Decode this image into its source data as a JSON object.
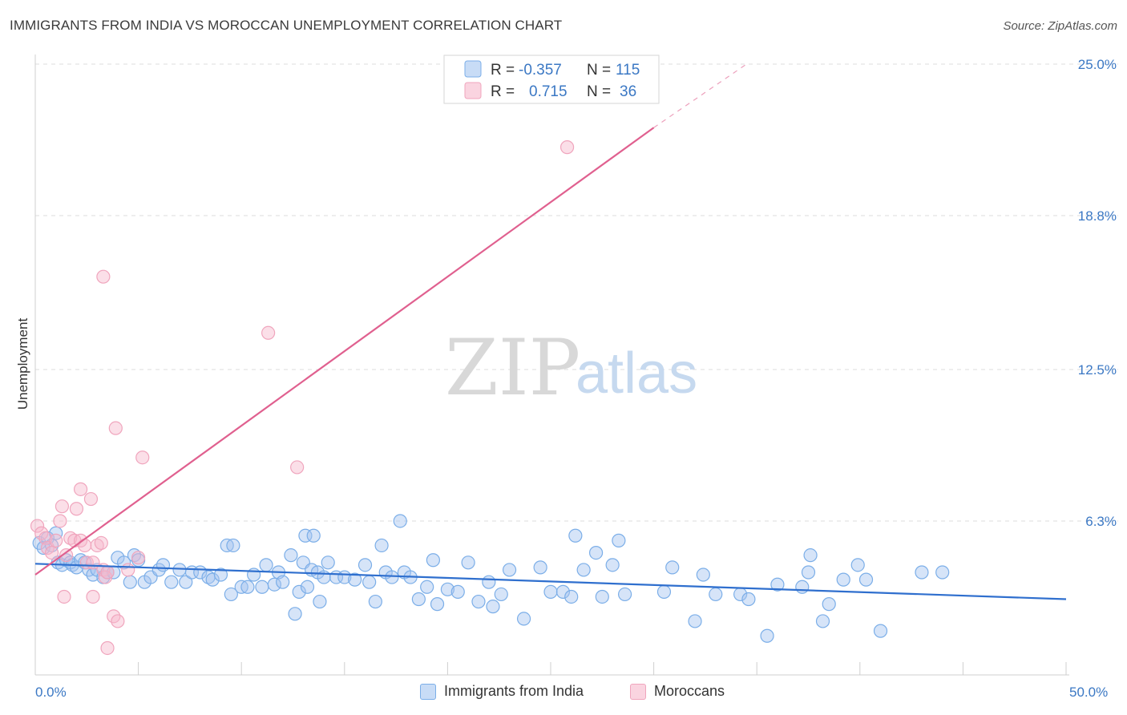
{
  "header": {
    "title": "IMMIGRANTS FROM INDIA VS MOROCCAN UNEMPLOYMENT CORRELATION CHART",
    "source": "Source: ZipAtlas.com"
  },
  "watermark": {
    "zip": "ZIP",
    "atlas": "atlas"
  },
  "chart_data": {
    "type": "scatter",
    "title": "IMMIGRANTS FROM INDIA VS MOROCCAN UNEMPLOYMENT CORRELATION CHART",
    "xlabel": "",
    "ylabel": "Unemployment",
    "xlim": [
      0,
      50
    ],
    "ylim": [
      0,
      25
    ],
    "x_tick_labels": [
      "0.0%",
      "50.0%"
    ],
    "y_ticks": [
      {
        "value": 6.3,
        "label": "6.3%"
      },
      {
        "value": 12.5,
        "label": "12.5%"
      },
      {
        "value": 18.8,
        "label": "18.8%"
      },
      {
        "value": 25.0,
        "label": "25.0%"
      }
    ],
    "legend_stats": [
      {
        "r_label": "R =",
        "r_value": "-0.357",
        "n_label": "N =",
        "n_value": "115"
      },
      {
        "r_label": "R =",
        "r_value": "0.715",
        "n_label": "N =",
        "n_value": "36"
      }
    ],
    "series": [
      {
        "name": "Immigrants from India",
        "color": "#7baee8",
        "fill": "rgba(164,196,240,0.45)",
        "line_color": "#2f6fce",
        "trend": {
          "x0": 0.0,
          "y0": 4.55,
          "x1": 50.0,
          "y1": 3.1
        },
        "points": [
          [
            0.2,
            5.4
          ],
          [
            0.4,
            5.2
          ],
          [
            0.6,
            5.6
          ],
          [
            0.8,
            5.3
          ],
          [
            1.0,
            5.8
          ],
          [
            1.1,
            4.6
          ],
          [
            1.3,
            4.5
          ],
          [
            1.5,
            4.7
          ],
          [
            1.7,
            4.6
          ],
          [
            1.8,
            4.5
          ],
          [
            2.0,
            4.4
          ],
          [
            2.2,
            4.7
          ],
          [
            2.4,
            4.6
          ],
          [
            2.6,
            4.3
          ],
          [
            2.8,
            4.1
          ],
          [
            3.0,
            4.3
          ],
          [
            3.3,
            4.0
          ],
          [
            3.5,
            4.2
          ],
          [
            3.8,
            4.2
          ],
          [
            4.0,
            4.8
          ],
          [
            4.3,
            4.6
          ],
          [
            4.6,
            3.8
          ],
          [
            4.8,
            4.9
          ],
          [
            5.0,
            4.7
          ],
          [
            5.3,
            3.8
          ],
          [
            5.6,
            4.0
          ],
          [
            6.0,
            4.3
          ],
          [
            6.2,
            4.5
          ],
          [
            6.6,
            3.8
          ],
          [
            7.0,
            4.3
          ],
          [
            7.3,
            3.8
          ],
          [
            7.6,
            4.2
          ],
          [
            8.0,
            4.2
          ],
          [
            8.4,
            4.0
          ],
          [
            8.6,
            3.9
          ],
          [
            9.0,
            4.1
          ],
          [
            9.5,
            3.3
          ],
          [
            9.3,
            5.3
          ],
          [
            9.6,
            5.3
          ],
          [
            10.0,
            3.6
          ],
          [
            10.3,
            3.6
          ],
          [
            10.6,
            4.1
          ],
          [
            11.0,
            3.6
          ],
          [
            11.2,
            4.5
          ],
          [
            11.6,
            3.7
          ],
          [
            11.8,
            4.2
          ],
          [
            12.0,
            3.8
          ],
          [
            12.4,
            4.9
          ],
          [
            12.8,
            3.4
          ],
          [
            13.0,
            4.6
          ],
          [
            13.2,
            3.6
          ],
          [
            13.4,
            4.3
          ],
          [
            13.7,
            4.2
          ],
          [
            14.0,
            4.0
          ],
          [
            13.8,
            3.0
          ],
          [
            12.6,
            2.5
          ],
          [
            13.1,
            5.7
          ],
          [
            13.5,
            5.7
          ],
          [
            14.2,
            4.6
          ],
          [
            14.6,
            4.0
          ],
          [
            15.0,
            4.0
          ],
          [
            15.5,
            3.9
          ],
          [
            16.0,
            4.5
          ],
          [
            16.2,
            3.8
          ],
          [
            16.5,
            3.0
          ],
          [
            16.8,
            5.3
          ],
          [
            17.0,
            4.2
          ],
          [
            17.3,
            4.0
          ],
          [
            17.7,
            6.3
          ],
          [
            17.9,
            4.2
          ],
          [
            18.2,
            4.0
          ],
          [
            18.6,
            3.1
          ],
          [
            19.0,
            3.6
          ],
          [
            19.3,
            4.7
          ],
          [
            19.5,
            2.9
          ],
          [
            20.0,
            3.5
          ],
          [
            20.5,
            3.4
          ],
          [
            21.0,
            4.6
          ],
          [
            21.5,
            3.0
          ],
          [
            22.0,
            3.8
          ],
          [
            22.2,
            2.8
          ],
          [
            22.6,
            3.3
          ],
          [
            23.0,
            4.3
          ],
          [
            23.7,
            2.3
          ],
          [
            24.5,
            4.4
          ],
          [
            25.0,
            3.4
          ],
          [
            25.6,
            3.4
          ],
          [
            26.2,
            5.7
          ],
          [
            26.6,
            4.3
          ],
          [
            27.2,
            5.0
          ],
          [
            27.5,
            3.2
          ],
          [
            28.0,
            4.5
          ],
          [
            28.3,
            5.5
          ],
          [
            28.6,
            3.3
          ],
          [
            30.5,
            3.4
          ],
          [
            32.0,
            2.2
          ],
          [
            32.4,
            4.1
          ],
          [
            34.2,
            3.3
          ],
          [
            34.6,
            3.1
          ],
          [
            35.5,
            1.6
          ],
          [
            37.2,
            3.6
          ],
          [
            37.5,
            4.2
          ],
          [
            37.6,
            4.9
          ],
          [
            38.5,
            2.9
          ],
          [
            39.2,
            3.9
          ],
          [
            39.9,
            4.5
          ],
          [
            40.3,
            3.9
          ],
          [
            41.0,
            1.8
          ],
          [
            43.0,
            4.2
          ],
          [
            44.0,
            4.2
          ],
          [
            38.2,
            2.2
          ],
          [
            30.9,
            4.4
          ],
          [
            36.0,
            3.7
          ],
          [
            26.0,
            3.2
          ],
          [
            33.0,
            3.3
          ]
        ]
      },
      {
        "name": "Moroccans",
        "color": "#f0a5bd",
        "fill": "rgba(246,184,204,0.45)",
        "line_color": "#e0608f",
        "trend": {
          "x0": 0.0,
          "y0": 4.1,
          "x1": 30.0,
          "y1": 22.4
        },
        "trend_ext": {
          "x0": 30.0,
          "y0": 22.4,
          "x1": 34.5,
          "y1": 25.0
        },
        "points": [
          [
            0.1,
            6.1
          ],
          [
            0.3,
            5.8
          ],
          [
            0.5,
            5.6
          ],
          [
            0.6,
            5.2
          ],
          [
            0.8,
            5.0
          ],
          [
            1.0,
            5.5
          ],
          [
            1.2,
            6.3
          ],
          [
            1.3,
            6.9
          ],
          [
            1.5,
            4.9
          ],
          [
            1.7,
            5.6
          ],
          [
            1.9,
            5.5
          ],
          [
            2.0,
            6.8
          ],
          [
            2.2,
            5.5
          ],
          [
            2.4,
            5.3
          ],
          [
            2.2,
            7.6
          ],
          [
            2.5,
            4.6
          ],
          [
            2.7,
            7.2
          ],
          [
            2.8,
            4.6
          ],
          [
            3.0,
            5.3
          ],
          [
            3.2,
            5.4
          ],
          [
            3.3,
            4.3
          ],
          [
            3.4,
            4.0
          ],
          [
            3.5,
            4.2
          ],
          [
            3.8,
            2.4
          ],
          [
            4.0,
            2.2
          ],
          [
            4.5,
            4.3
          ],
          [
            5.0,
            4.8
          ],
          [
            1.4,
            3.2
          ],
          [
            2.8,
            3.2
          ],
          [
            3.3,
            16.3
          ],
          [
            3.5,
            1.1
          ],
          [
            3.9,
            10.1
          ],
          [
            5.2,
            8.9
          ],
          [
            11.3,
            14.0
          ],
          [
            12.7,
            8.5
          ],
          [
            25.8,
            21.6
          ]
        ]
      }
    ]
  }
}
